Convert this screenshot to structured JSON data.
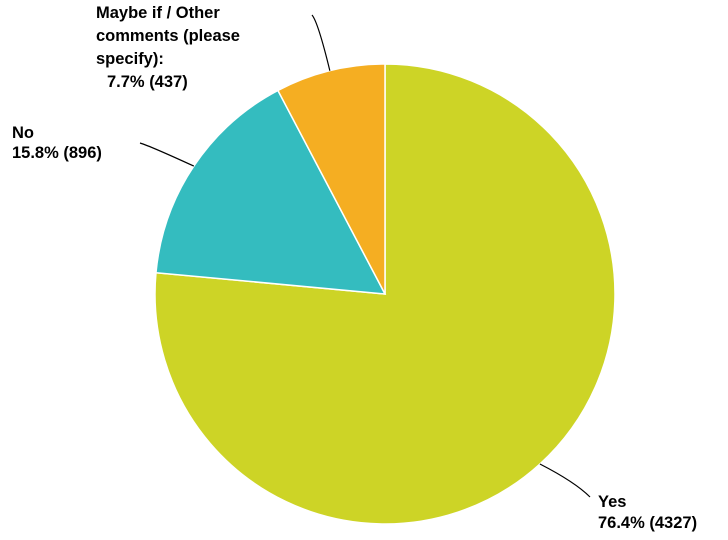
{
  "chart_data": {
    "type": "pie",
    "start_angle_deg": 0,
    "direction": "clockwise",
    "slices": [
      {
        "name": "Yes",
        "percent": 76.4,
        "count": 4327,
        "color": "#cdd426",
        "label_lines": [
          "Yes",
          "76.4% (4327)"
        ]
      },
      {
        "name": "No",
        "percent": 15.8,
        "count": 896,
        "color": "#34bcbf",
        "label_lines": [
          "No",
          "15.8% (896)"
        ]
      },
      {
        "name": "Maybe if / Other comments (please specify):",
        "percent": 7.7,
        "count": 437,
        "color": "#f5ae22",
        "label_lines": [
          "Maybe if / Other",
          "comments (please",
          "specify):",
          "",
          "7.7% (437)"
        ]
      }
    ]
  }
}
